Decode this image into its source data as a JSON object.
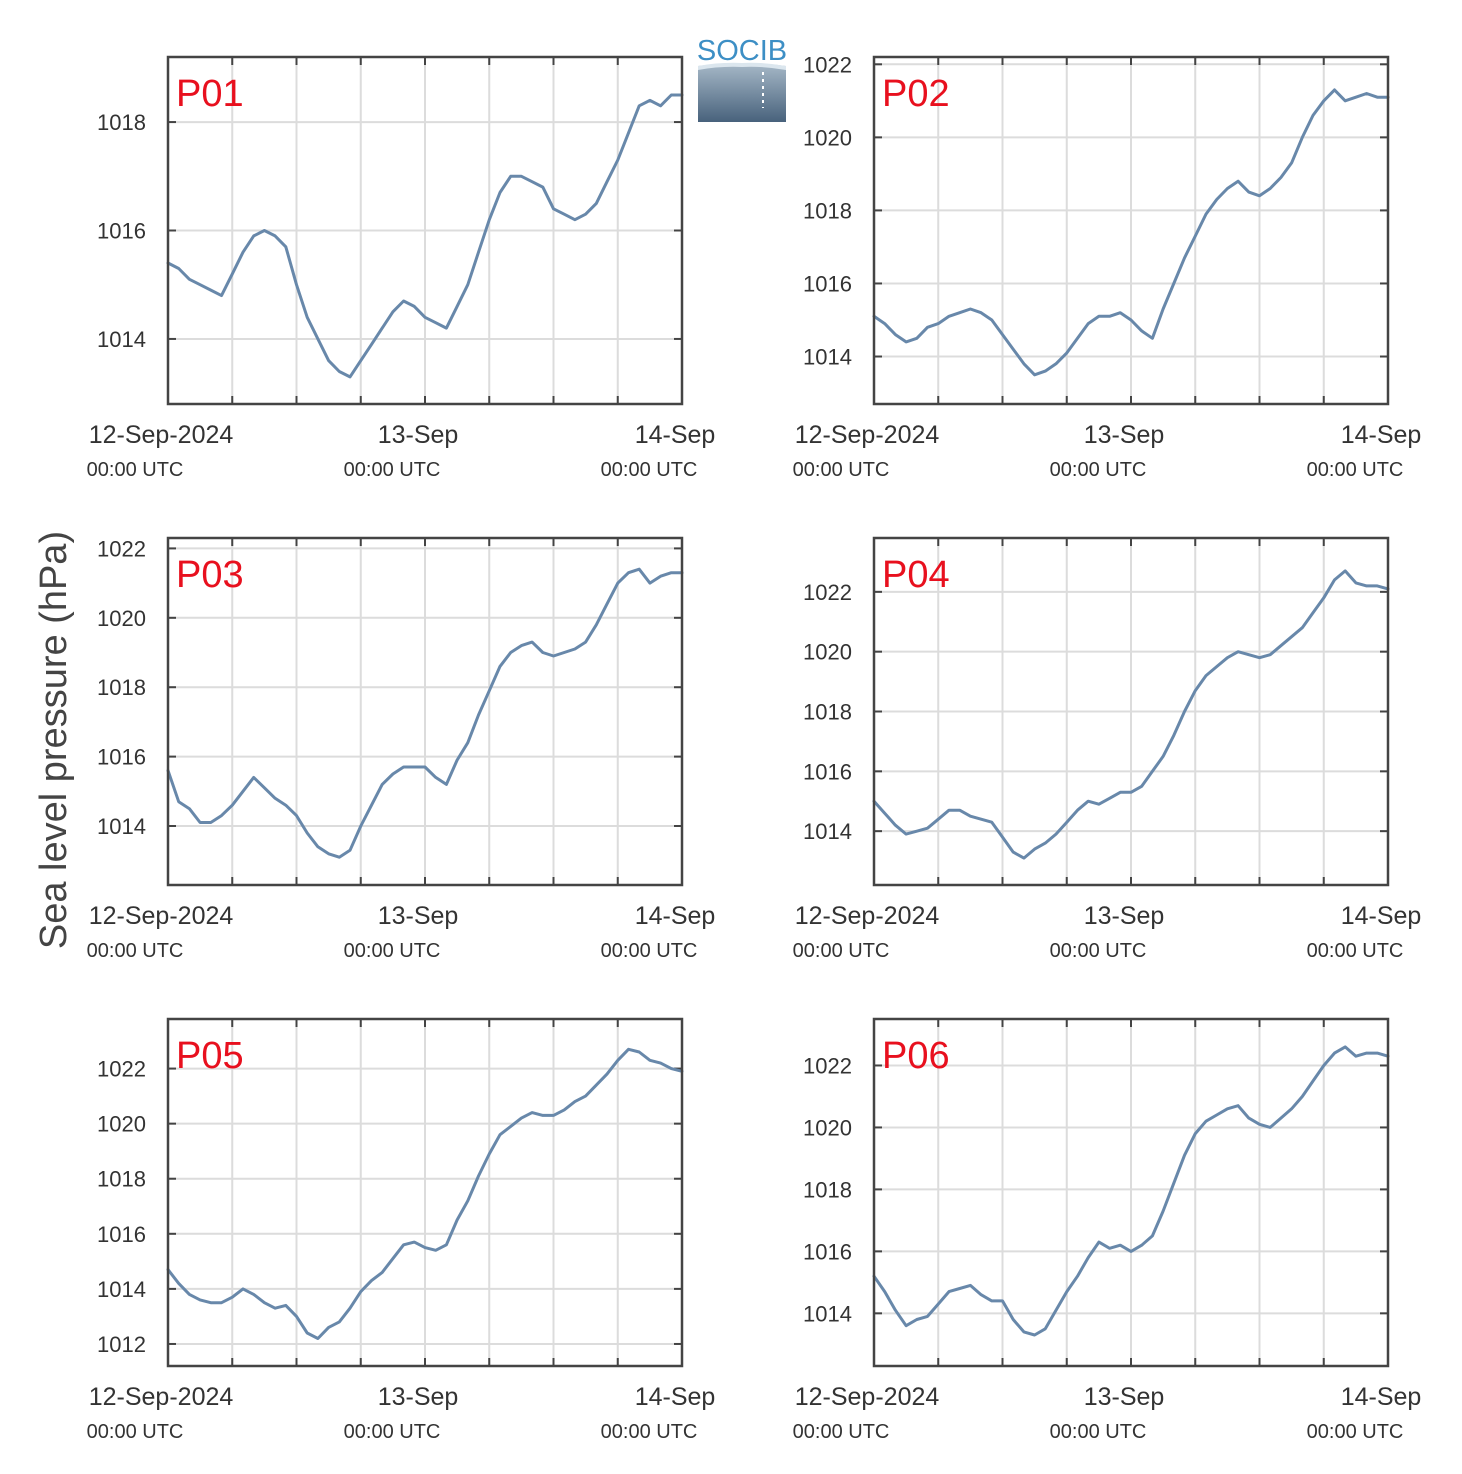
{
  "figure": {
    "ylabel": "Sea level pressure (hPa)",
    "logo_text": "SOCIB",
    "colors": {
      "line": "#6888aa",
      "panel_label": "#e8101e",
      "grid": "#dcdcdc",
      "frame": "#444444"
    }
  },
  "chart_data": [
    {
      "type": "line",
      "title": "P01",
      "xlim": [
        0,
        48
      ],
      "ylim": [
        1012.8,
        1019.2
      ],
      "yticks": [
        1014,
        1016,
        1018
      ],
      "xticks": [
        {
          "pos": 0,
          "label": "12-Sep-2024",
          "sub": "00:00 UTC"
        },
        {
          "pos": 24,
          "label": "13-Sep",
          "sub": "00:00 UTC"
        },
        {
          "pos": 48,
          "label": "14-Sep",
          "sub": "00:00 UTC"
        }
      ],
      "series": [
        {
          "x": [
            0,
            1,
            2,
            3,
            4,
            5,
            6,
            7,
            8,
            9,
            10,
            11,
            12,
            13,
            14,
            15,
            16,
            17,
            18,
            19,
            20,
            21,
            22,
            23,
            24,
            25,
            26,
            27,
            28,
            29,
            30,
            31,
            32,
            33,
            34,
            35,
            36,
            37,
            38,
            39,
            40,
            41,
            42,
            43,
            44,
            45,
            46,
            47,
            48
          ],
          "values": [
            1015.4,
            1015.3,
            1015.1,
            1015.0,
            1014.9,
            1014.8,
            1015.2,
            1015.6,
            1015.9,
            1016.0,
            1015.9,
            1015.7,
            1015.0,
            1014.4,
            1014.0,
            1013.6,
            1013.4,
            1013.3,
            1013.6,
            1013.9,
            1014.2,
            1014.5,
            1014.7,
            1014.6,
            1014.4,
            1014.3,
            1014.2,
            1014.6,
            1015.0,
            1015.6,
            1016.2,
            1016.7,
            1017.0,
            1017.0,
            1016.9,
            1016.8,
            1016.4,
            1016.3,
            1016.2,
            1016.3,
            1016.5,
            1016.9,
            1017.3,
            1017.8,
            1018.3,
            1018.4,
            1018.3,
            1018.5,
            1018.5
          ]
        }
      ]
    },
    {
      "type": "line",
      "title": "P02",
      "xlim": [
        0,
        48
      ],
      "ylim": [
        1012.7,
        1022.2
      ],
      "yticks": [
        1014,
        1016,
        1018,
        1020,
        1022
      ],
      "xticks": [
        {
          "pos": 0,
          "label": "12-Sep-2024",
          "sub": "00:00 UTC"
        },
        {
          "pos": 24,
          "label": "13-Sep",
          "sub": "00:00 UTC"
        },
        {
          "pos": 48,
          "label": "14-Sep",
          "sub": "00:00 UTC"
        }
      ],
      "series": [
        {
          "x": [
            0,
            1,
            2,
            3,
            4,
            5,
            6,
            7,
            8,
            9,
            10,
            11,
            12,
            13,
            14,
            15,
            16,
            17,
            18,
            19,
            20,
            21,
            22,
            23,
            24,
            25,
            26,
            27,
            28,
            29,
            30,
            31,
            32,
            33,
            34,
            35,
            36,
            37,
            38,
            39,
            40,
            41,
            42,
            43,
            44,
            45,
            46,
            47,
            48
          ],
          "values": [
            1015.1,
            1014.9,
            1014.6,
            1014.4,
            1014.5,
            1014.8,
            1014.9,
            1015.1,
            1015.2,
            1015.3,
            1015.2,
            1015.0,
            1014.6,
            1014.2,
            1013.8,
            1013.5,
            1013.6,
            1013.8,
            1014.1,
            1014.5,
            1014.9,
            1015.1,
            1015.1,
            1015.2,
            1015.0,
            1014.7,
            1014.5,
            1015.3,
            1016.0,
            1016.7,
            1017.3,
            1017.9,
            1018.3,
            1018.6,
            1018.8,
            1018.5,
            1018.4,
            1018.6,
            1018.9,
            1019.3,
            1020.0,
            1020.6,
            1021.0,
            1021.3,
            1021.0,
            1021.1,
            1021.2,
            1021.1,
            1021.1
          ]
        }
      ]
    },
    {
      "type": "line",
      "title": "P03",
      "xlim": [
        0,
        48
      ],
      "ylim": [
        1012.3,
        1022.3
      ],
      "yticks": [
        1014,
        1016,
        1018,
        1020,
        1022
      ],
      "xticks": [
        {
          "pos": 0,
          "label": "12-Sep-2024",
          "sub": "00:00 UTC"
        },
        {
          "pos": 24,
          "label": "13-Sep",
          "sub": "00:00 UTC"
        },
        {
          "pos": 48,
          "label": "14-Sep",
          "sub": "00:00 UTC"
        }
      ],
      "series": [
        {
          "x": [
            0,
            1,
            2,
            3,
            4,
            5,
            6,
            7,
            8,
            9,
            10,
            11,
            12,
            13,
            14,
            15,
            16,
            17,
            18,
            19,
            20,
            21,
            22,
            23,
            24,
            25,
            26,
            27,
            28,
            29,
            30,
            31,
            32,
            33,
            34,
            35,
            36,
            37,
            38,
            39,
            40,
            41,
            42,
            43,
            44,
            45,
            46,
            47,
            48
          ],
          "values": [
            1015.6,
            1014.7,
            1014.5,
            1014.1,
            1014.1,
            1014.3,
            1014.6,
            1015.0,
            1015.4,
            1015.1,
            1014.8,
            1014.6,
            1014.3,
            1013.8,
            1013.4,
            1013.2,
            1013.1,
            1013.3,
            1014.0,
            1014.6,
            1015.2,
            1015.5,
            1015.7,
            1015.7,
            1015.7,
            1015.4,
            1015.2,
            1015.9,
            1016.4,
            1017.2,
            1017.9,
            1018.6,
            1019.0,
            1019.2,
            1019.3,
            1019.0,
            1018.9,
            1019.0,
            1019.1,
            1019.3,
            1019.8,
            1020.4,
            1021.0,
            1021.3,
            1021.4,
            1021.0,
            1021.2,
            1021.3,
            1021.3
          ]
        }
      ]
    },
    {
      "type": "line",
      "title": "P04",
      "xlim": [
        0,
        48
      ],
      "ylim": [
        1012.2,
        1023.8
      ],
      "yticks": [
        1014,
        1016,
        1018,
        1020,
        1022
      ],
      "xticks": [
        {
          "pos": 0,
          "label": "12-Sep-2024",
          "sub": "00:00 UTC"
        },
        {
          "pos": 24,
          "label": "13-Sep",
          "sub": "00:00 UTC"
        },
        {
          "pos": 48,
          "label": "14-Sep",
          "sub": "00:00 UTC"
        }
      ],
      "series": [
        {
          "x": [
            0,
            1,
            2,
            3,
            4,
            5,
            6,
            7,
            8,
            9,
            10,
            11,
            12,
            13,
            14,
            15,
            16,
            17,
            18,
            19,
            20,
            21,
            22,
            23,
            24,
            25,
            26,
            27,
            28,
            29,
            30,
            31,
            32,
            33,
            34,
            35,
            36,
            37,
            38,
            39,
            40,
            41,
            42,
            43,
            44,
            45,
            46,
            47,
            48
          ],
          "values": [
            1015.0,
            1014.6,
            1014.2,
            1013.9,
            1014.0,
            1014.1,
            1014.4,
            1014.7,
            1014.7,
            1014.5,
            1014.4,
            1014.3,
            1013.8,
            1013.3,
            1013.1,
            1013.4,
            1013.6,
            1013.9,
            1014.3,
            1014.7,
            1015.0,
            1014.9,
            1015.1,
            1015.3,
            1015.3,
            1015.5,
            1016.0,
            1016.5,
            1017.2,
            1018.0,
            1018.7,
            1019.2,
            1019.5,
            1019.8,
            1020.0,
            1019.9,
            1019.8,
            1019.9,
            1020.2,
            1020.5,
            1020.8,
            1021.3,
            1021.8,
            1022.4,
            1022.7,
            1022.3,
            1022.2,
            1022.2,
            1022.1
          ]
        }
      ]
    },
    {
      "type": "line",
      "title": "P05",
      "xlim": [
        0,
        48
      ],
      "ylim": [
        1011.2,
        1023.8
      ],
      "yticks": [
        1012,
        1014,
        1016,
        1018,
        1020,
        1022
      ],
      "xticks": [
        {
          "pos": 0,
          "label": "12-Sep-2024",
          "sub": "00:00 UTC"
        },
        {
          "pos": 24,
          "label": "13-Sep",
          "sub": "00:00 UTC"
        },
        {
          "pos": 48,
          "label": "14-Sep",
          "sub": "00:00 UTC"
        }
      ],
      "series": [
        {
          "x": [
            0,
            1,
            2,
            3,
            4,
            5,
            6,
            7,
            8,
            9,
            10,
            11,
            12,
            13,
            14,
            15,
            16,
            17,
            18,
            19,
            20,
            21,
            22,
            23,
            24,
            25,
            26,
            27,
            28,
            29,
            30,
            31,
            32,
            33,
            34,
            35,
            36,
            37,
            38,
            39,
            40,
            41,
            42,
            43,
            44,
            45,
            46,
            47,
            48
          ],
          "values": [
            1014.7,
            1014.2,
            1013.8,
            1013.6,
            1013.5,
            1013.5,
            1013.7,
            1014.0,
            1013.8,
            1013.5,
            1013.3,
            1013.4,
            1013.0,
            1012.4,
            1012.2,
            1012.6,
            1012.8,
            1013.3,
            1013.9,
            1014.3,
            1014.6,
            1015.1,
            1015.6,
            1015.7,
            1015.5,
            1015.4,
            1015.6,
            1016.5,
            1017.2,
            1018.1,
            1018.9,
            1019.6,
            1019.9,
            1020.2,
            1020.4,
            1020.3,
            1020.3,
            1020.5,
            1020.8,
            1021.0,
            1021.4,
            1021.8,
            1022.3,
            1022.7,
            1022.6,
            1022.3,
            1022.2,
            1022.0,
            1021.9
          ]
        }
      ]
    },
    {
      "type": "line",
      "title": "P06",
      "xlim": [
        0,
        48
      ],
      "ylim": [
        1012.3,
        1023.5
      ],
      "yticks": [
        1014,
        1016,
        1018,
        1020,
        1022
      ],
      "xticks": [
        {
          "pos": 0,
          "label": "12-Sep-2024",
          "sub": "00:00 UTC"
        },
        {
          "pos": 24,
          "label": "13-Sep",
          "sub": "00:00 UTC"
        },
        {
          "pos": 48,
          "label": "14-Sep",
          "sub": "00:00 UTC"
        }
      ],
      "series": [
        {
          "x": [
            0,
            1,
            2,
            3,
            4,
            5,
            6,
            7,
            8,
            9,
            10,
            11,
            12,
            13,
            14,
            15,
            16,
            17,
            18,
            19,
            20,
            21,
            22,
            23,
            24,
            25,
            26,
            27,
            28,
            29,
            30,
            31,
            32,
            33,
            34,
            35,
            36,
            37,
            38,
            39,
            40,
            41,
            42,
            43,
            44,
            45,
            46,
            47,
            48
          ],
          "values": [
            1015.2,
            1014.7,
            1014.1,
            1013.6,
            1013.8,
            1013.9,
            1014.3,
            1014.7,
            1014.8,
            1014.9,
            1014.6,
            1014.4,
            1014.4,
            1013.8,
            1013.4,
            1013.3,
            1013.5,
            1014.1,
            1014.7,
            1015.2,
            1015.8,
            1016.3,
            1016.1,
            1016.2,
            1016.0,
            1016.2,
            1016.5,
            1017.3,
            1018.2,
            1019.1,
            1019.8,
            1020.2,
            1020.4,
            1020.6,
            1020.7,
            1020.3,
            1020.1,
            1020.0,
            1020.3,
            1020.6,
            1021.0,
            1021.5,
            1022.0,
            1022.4,
            1022.6,
            1022.3,
            1022.4,
            1022.4,
            1022.3
          ]
        }
      ]
    }
  ]
}
